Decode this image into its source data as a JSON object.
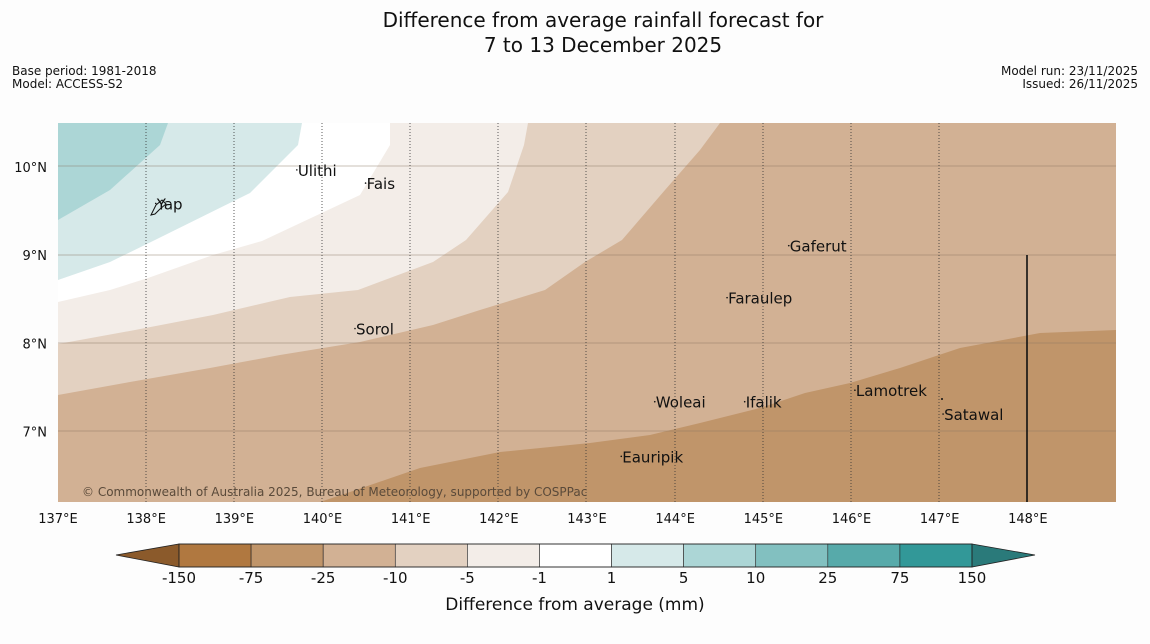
{
  "title": {
    "line1": "Difference from average rainfall forecast for",
    "line2": "7 to 13 December 2025"
  },
  "meta": {
    "base_period": "Base period: 1981-2018",
    "model": "Model: ACCESS-S2",
    "model_run": "Model run: 23/11/2025",
    "issued": "Issued: 26/11/2025"
  },
  "map": {
    "lon_range": [
      137.0,
      149.0
    ],
    "lat_range": [
      6.2,
      10.5
    ],
    "lon_ticks": [
      "137°E",
      "138°E",
      "139°E",
      "140°E",
      "141°E",
      "142°E",
      "143°E",
      "144°E",
      "145°E",
      "146°E",
      "147°E",
      "148°E"
    ],
    "lat_ticks": [
      "10°N",
      "9°N",
      "8°N",
      "7°N"
    ],
    "places": [
      {
        "name": "Ulithi",
        "lon": 139.72,
        "lat": 9.9
      },
      {
        "name": "Fais",
        "lon": 140.5,
        "lat": 9.75
      },
      {
        "name": "Yap",
        "lon": 138.12,
        "lat": 9.52
      },
      {
        "name": "Gaferut",
        "lon": 145.3,
        "lat": 9.04
      },
      {
        "name": "Faraulep",
        "lon": 144.6,
        "lat": 8.45
      },
      {
        "name": "Sorol",
        "lon": 140.38,
        "lat": 8.1
      },
      {
        "name": "Lamotrek",
        "lon": 146.05,
        "lat": 7.4
      },
      {
        "name": "Woleai",
        "lon": 143.78,
        "lat": 7.27
      },
      {
        "name": "Ifalik",
        "lon": 144.8,
        "lat": 7.27
      },
      {
        "name": "Satawal",
        "lon": 147.05,
        "lat": 7.13
      },
      {
        "name": "Eauripik",
        "lon": 143.4,
        "lat": 6.65
      }
    ],
    "copyright": "© Commonwealth of Australia 2025, Bureau of Meteorology, supported by COSPPac"
  },
  "colorbar": {
    "title": "Difference from average (mm)",
    "tick_labels": [
      "-150",
      "-75",
      "-25",
      "-10",
      "-5",
      "-1",
      "1",
      "5",
      "10",
      "25",
      "75",
      "150"
    ],
    "colors": [
      "#8b5a2b",
      "#b07840",
      "#c0956a",
      "#d2b194",
      "#e3d1c1",
      "#f3ede8",
      "#ffffff",
      "#d6e9e9",
      "#acd6d6",
      "#82c0c0",
      "#57aaaa",
      "#329898",
      "#2a7a7a"
    ]
  },
  "colors": {
    "pos5": "#d6e9e9",
    "pos10": "#acd6d6",
    "neg1": "#f3ede8",
    "neg5": "#e3d1c1",
    "neg10": "#d2b194",
    "neg25": "#c0956a"
  }
}
